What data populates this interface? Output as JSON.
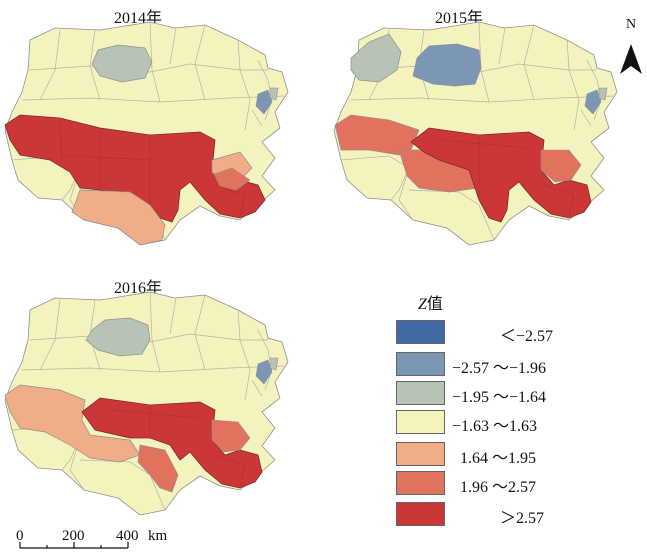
{
  "maps": [
    {
      "title": "2014年"
    },
    {
      "title": "2015年"
    },
    {
      "title": "2016年"
    }
  ],
  "north_arrow": {
    "label": "N"
  },
  "legend": {
    "title_var": "Z",
    "title_suffix": "值",
    "classes": [
      {
        "label": "＜−2.57",
        "color": "#3f6aa5"
      },
      {
        "label": "−2.57 ～−1.96",
        "color": "#7c97b6"
      },
      {
        "label": "−1.95 ～−1.64",
        "color": "#b7c3b5"
      },
      {
        "label": "−1.63 ～1.63",
        "color": "#f4f2bd"
      },
      {
        "label": "1.64 ～1.95",
        "color": "#f1ac88"
      },
      {
        "label": "1.96 ～2.57",
        "color": "#e2725e"
      },
      {
        "label": "＞2.57",
        "color": "#cd3636"
      }
    ]
  },
  "scale_bar": {
    "ticks": [
      "0",
      "200",
      "400"
    ],
    "unit": "km"
  }
}
